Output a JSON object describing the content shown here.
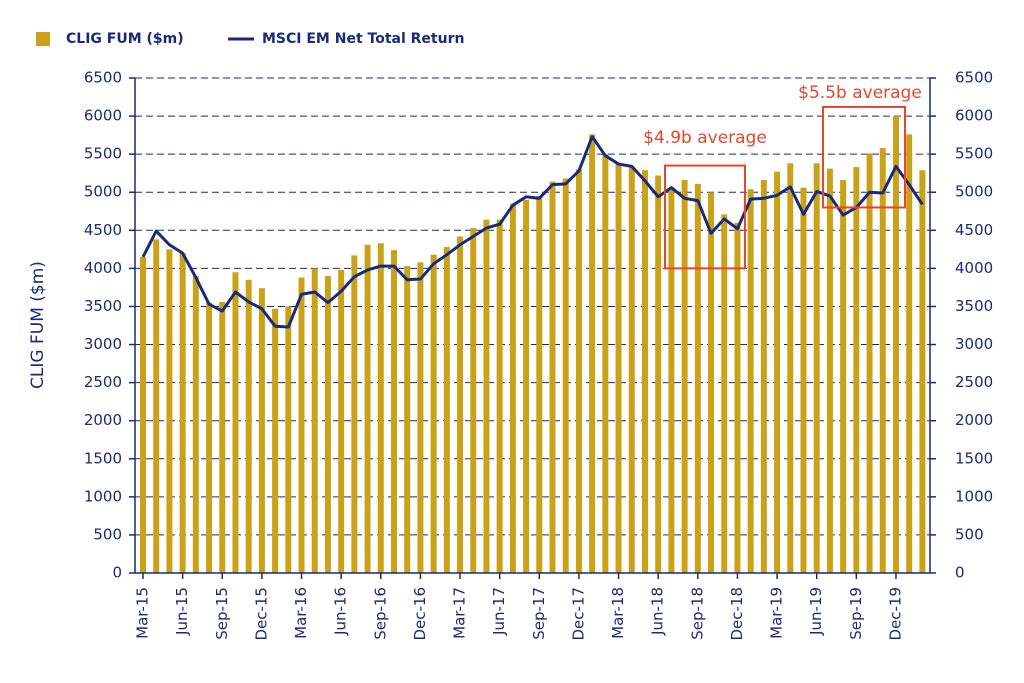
{
  "chart_data": {
    "type": "bar_line",
    "ylabel": "CLIG FUM ($m)",
    "categories": [
      "Mar-15",
      null,
      null,
      "Jun-15",
      null,
      null,
      "Sep-15",
      null,
      null,
      "Dec-15",
      null,
      null,
      "Mar-16",
      null,
      null,
      "Jun-16",
      null,
      null,
      "Sep-16",
      null,
      null,
      "Dec-16",
      null,
      null,
      "Mar-17",
      null,
      null,
      "Jun-17",
      null,
      null,
      "Sep-17",
      null,
      null,
      "Dec-17",
      null,
      null,
      "Mar-18",
      null,
      null,
      "Jun-18",
      null,
      null,
      "Sep-18",
      null,
      null,
      "Dec-18",
      null,
      null,
      "Mar-19",
      null,
      null,
      "Jun-19",
      null,
      null,
      "Sep-19",
      null,
      null,
      "Dec-19",
      null,
      null
    ],
    "series": [
      {
        "name": "CLIG FUM ($m)",
        "type": "bar",
        "color": "#c9a21a",
        "values": [
          4150,
          4380,
          4250,
          4200,
          3900,
          3550,
          3560,
          3950,
          3850,
          3740,
          3470,
          3500,
          3880,
          4000,
          3900,
          3980,
          4170,
          4310,
          4330,
          4240,
          4030,
          4080,
          4180,
          4280,
          4420,
          4530,
          4640,
          4640,
          4850,
          4900,
          4950,
          5140,
          5180,
          5300,
          5760,
          5500,
          5370,
          5340,
          5290,
          5220,
          5060,
          5160,
          5110,
          5000,
          4710,
          4600,
          5040,
          5160,
          5270,
          5380,
          5060,
          5380,
          5310,
          5160,
          5330,
          5510,
          5580,
          6000,
          5760,
          5290
        ]
      },
      {
        "name": "MSCI EM Net Total Return",
        "type": "line",
        "axis": "y2",
        "color": "#1b2a78",
        "values": [
          4150,
          4490,
          4310,
          4200,
          3880,
          3530,
          3440,
          3690,
          3560,
          3470,
          3240,
          3230,
          3660,
          3690,
          3550,
          3700,
          3890,
          3980,
          4030,
          4030,
          3850,
          3860,
          4060,
          4180,
          4310,
          4420,
          4530,
          4580,
          4830,
          4940,
          4920,
          5100,
          5110,
          5280,
          5730,
          5480,
          5370,
          5340,
          5150,
          4940,
          5060,
          4920,
          4890,
          4460,
          4650,
          4520,
          4910,
          4920,
          4960,
          5070,
          4710,
          5010,
          4950,
          4700,
          4800,
          5000,
          4990,
          5340,
          5100,
          4840
        ]
      }
    ],
    "ylim": [
      0,
      6500
    ],
    "yticks": [
      0,
      500,
      1000,
      1500,
      2000,
      2500,
      3000,
      3500,
      4000,
      4500,
      5000,
      5500,
      6000,
      6500
    ],
    "y2lim": [
      0,
      6500
    ],
    "y2ticks": [
      0,
      500,
      1000,
      1500,
      2000,
      2500,
      3000,
      3500,
      4000,
      4500,
      5000,
      5500,
      6000,
      6500
    ],
    "grid": true,
    "legend": "top-left",
    "annotations": [
      "$4.9b average",
      "$5.5b average"
    ]
  }
}
